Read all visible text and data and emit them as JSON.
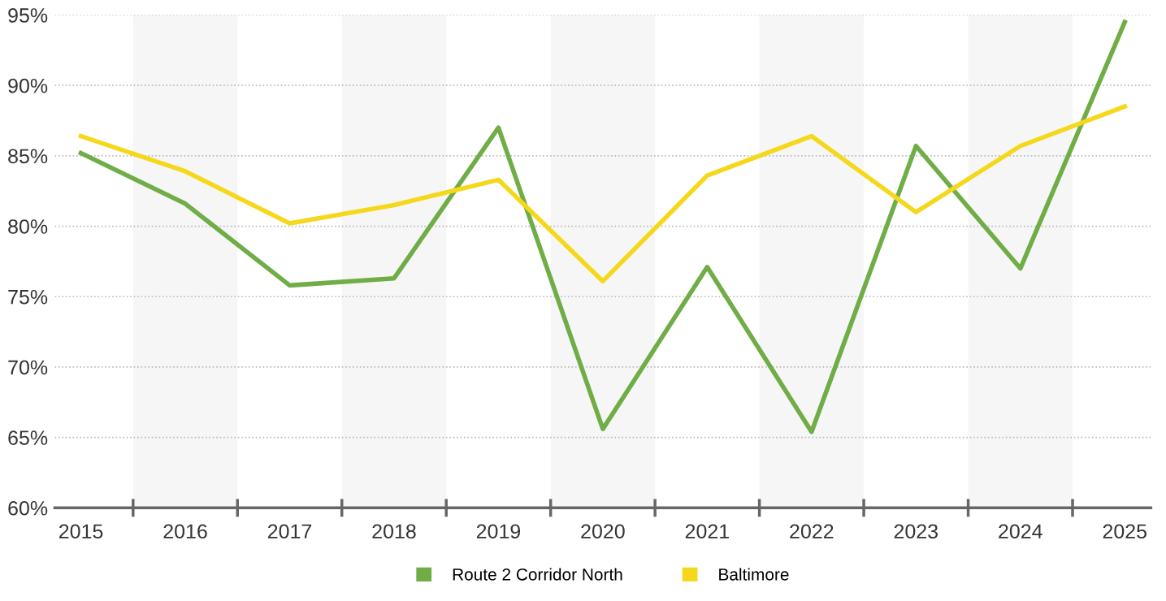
{
  "chart_data": {
    "type": "line",
    "categories": [
      "2015",
      "2016",
      "2017",
      "2018",
      "2019",
      "2020",
      "2021",
      "2022",
      "2023",
      "2024",
      "2025"
    ],
    "series": [
      {
        "name": "Route 2 Corridor North",
        "color": "#70ad47",
        "values": [
          85.2,
          81.6,
          75.8,
          76.3,
          87.0,
          65.6,
          77.1,
          65.4,
          85.7,
          77.0,
          94.5
        ]
      },
      {
        "name": "Baltimore",
        "color": "#f5d81c",
        "values": [
          86.4,
          83.9,
          80.2,
          81.5,
          83.3,
          76.1,
          83.6,
          86.4,
          81.0,
          85.7,
          88.5
        ]
      }
    ],
    "ylim": [
      60,
      95
    ],
    "yticks": [
      {
        "value": 60,
        "label": "60%"
      },
      {
        "value": 65,
        "label": "65%"
      },
      {
        "value": 70,
        "label": "70%"
      },
      {
        "value": 75,
        "label": "75%"
      },
      {
        "value": 80,
        "label": "80%"
      },
      {
        "value": 85,
        "label": "85%"
      },
      {
        "value": 90,
        "label": "90%"
      },
      {
        "value": 95,
        "label": "95%"
      }
    ],
    "grid": "y",
    "legend": "bottom",
    "marker": "none",
    "line_style": "solid"
  }
}
